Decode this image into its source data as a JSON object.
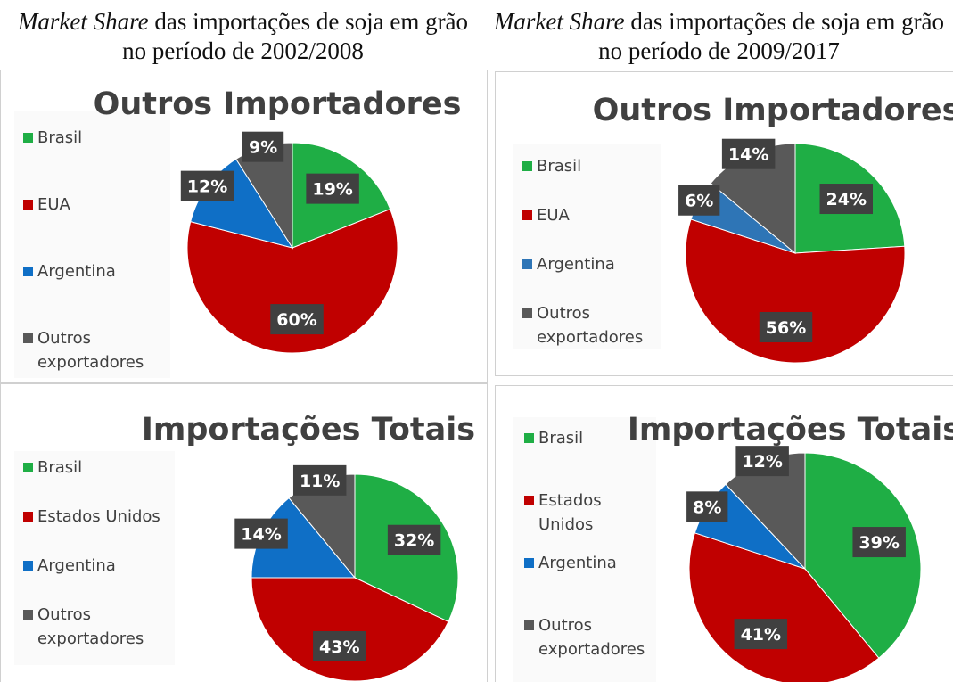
{
  "headings": [
    {
      "em": "Market Share",
      "rest": "das importações de soja em grão no período de 2002/2008"
    },
    {
      "em": "Market Share",
      "rest": "das importações de soja em grão no período de 2009/2017"
    }
  ],
  "chart_data": [
    {
      "type": "pie",
      "title": "Outros Importadores",
      "categories": [
        "Brasil",
        "EUA",
        "Argentina",
        "Outros exportadores"
      ],
      "values": [
        19,
        60,
        12,
        9
      ],
      "value_labels": [
        "19%",
        "60%",
        "12%",
        "9%"
      ],
      "colors": [
        "#1fae45",
        "#c00000",
        "#0f6fc6",
        "#595959"
      ]
    },
    {
      "type": "pie",
      "title": "Outros Importadores",
      "categories": [
        "Brasil",
        "EUA",
        "Argentina",
        "Outros exportadores"
      ],
      "values": [
        24,
        56,
        6,
        14
      ],
      "value_labels": [
        "24%",
        "56%",
        "6%",
        "14%"
      ],
      "colors": [
        "#1fae45",
        "#c00000",
        "#2e75b6",
        "#595959"
      ]
    },
    {
      "type": "pie",
      "title": "Importações Totais",
      "categories": [
        "Brasil",
        "Estados Unidos",
        "Argentina",
        "Outros exportadores"
      ],
      "values": [
        32,
        43,
        14,
        11
      ],
      "value_labels": [
        "32%",
        "43%",
        "14%",
        "11%"
      ],
      "colors": [
        "#1fae45",
        "#c00000",
        "#0f6fc6",
        "#595959"
      ]
    },
    {
      "type": "pie",
      "title": "Importações Totais",
      "categories": [
        "Brasil",
        "Estados Unidos",
        "Argentina",
        "Outros exportadores"
      ],
      "values": [
        39,
        41,
        8,
        12
      ],
      "value_labels": [
        "39%",
        "41%",
        "8%",
        "12%"
      ],
      "colors": [
        "#1fae45",
        "#c00000",
        "#0f6fc6",
        "#595959"
      ]
    }
  ]
}
